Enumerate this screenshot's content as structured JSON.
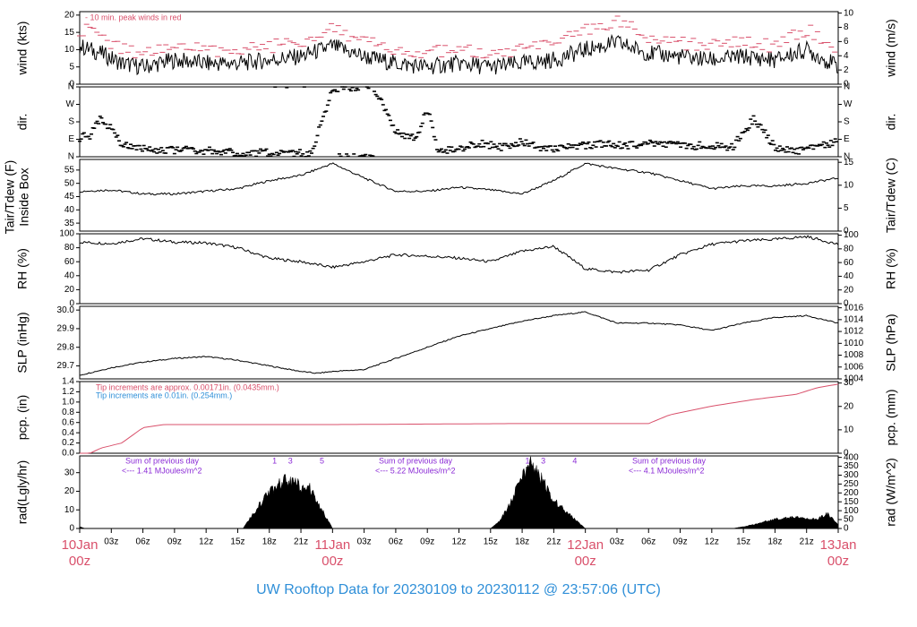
{
  "title": "UW Rooftop Data for 20230109  to  20230112 @ 23:57:06  (UTC)",
  "colors": {
    "title": "#2f8fd8",
    "day": "#d9506b",
    "peak": "#d9506b",
    "pcp": "#d9506b",
    "tip_blue": "#2f8fd8",
    "purple": "#8b2bd6",
    "ink": "#000000"
  },
  "x_axis": {
    "hour_labels": [
      "03z",
      "06z",
      "09z",
      "12z",
      "15z",
      "18z",
      "21z",
      "03z",
      "06z",
      "09z",
      "12z",
      "15z",
      "18z",
      "21z",
      "03z",
      "06z",
      "09z",
      "12z",
      "15z",
      "18z",
      "21z"
    ],
    "day_labels": [
      {
        "date": "10Jan",
        "hour": "00z"
      },
      {
        "date": "11Jan",
        "hour": "00z"
      },
      {
        "date": "12Jan",
        "hour": "00z"
      },
      {
        "date": "13Jan",
        "hour": "00z"
      }
    ]
  },
  "chart_data": [
    {
      "id": "wind",
      "type": "line",
      "ylabel_left": "wind (kts)",
      "ylabel_right": "wind (m/s)",
      "ylim": [
        0,
        21
      ],
      "yticks_left": [
        "0",
        "5",
        "10",
        "15",
        "20"
      ],
      "yticks_right": [
        "0",
        "2",
        "4",
        "6",
        "8",
        "10"
      ],
      "annotation": "- 10 min. peak winds in red",
      "series": [
        {
          "kind": "mean",
          "x_hours": [
            0,
            2,
            4,
            6,
            9,
            12,
            15,
            18,
            21,
            24,
            27,
            30,
            33,
            36,
            39,
            42,
            45,
            48,
            51,
            54,
            57,
            60,
            63,
            66,
            69,
            72
          ],
          "values": [
            11,
            9,
            6,
            5,
            7,
            6,
            6,
            7,
            8,
            11,
            8,
            6,
            5,
            6,
            5,
            6,
            7,
            10,
            12,
            9,
            8,
            7,
            8,
            7,
            10,
            5
          ]
        },
        {
          "kind": "peak",
          "x_hours": [
            0,
            2,
            4,
            6,
            9,
            12,
            15,
            18,
            21,
            24,
            27,
            30,
            33,
            36,
            39,
            42,
            45,
            48,
            51,
            54,
            57,
            60,
            63,
            66,
            69,
            72
          ],
          "values": [
            16,
            14,
            10,
            9,
            11,
            10,
            10,
            11,
            12,
            17,
            12,
            10,
            9,
            10,
            8,
            10,
            11,
            16,
            18,
            14,
            12,
            11,
            12,
            11,
            16,
            9
          ]
        }
      ]
    },
    {
      "id": "dir",
      "type": "scatter",
      "ylabel_left": "dir.",
      "ylabel_right": "dir.",
      "ylim": [
        0,
        360
      ],
      "yticks_left": [
        "N",
        "E",
        "S",
        "W",
        "N"
      ],
      "yticks_right": [
        "N",
        "E",
        "S",
        "W",
        "N"
      ],
      "x_hours": [
        0,
        1,
        2,
        3,
        4,
        6,
        8,
        10,
        12,
        14,
        16,
        18,
        20,
        22,
        24,
        26,
        28,
        30,
        32,
        33,
        34,
        36,
        38,
        40,
        42,
        44,
        46,
        48,
        50,
        52,
        54,
        56,
        58,
        60,
        62,
        64,
        66,
        68,
        70,
        72
      ],
      "values": [
        100,
        110,
        200,
        140,
        60,
        40,
        30,
        40,
        30,
        25,
        20,
        20,
        15,
        20,
        355,
        355,
        350,
        130,
        90,
        250,
        30,
        40,
        70,
        50,
        80,
        40,
        50,
        60,
        70,
        60,
        70,
        60,
        55,
        60,
        50,
        200,
        50,
        30,
        45,
        85
      ]
    },
    {
      "id": "temp",
      "type": "line",
      "ylabel_left": "Tair/Tdew (F)",
      "ylabel_left_sub": "Inside Box",
      "ylabel_right": "Tair/Tdew (C)",
      "ylim": [
        32,
        59
      ],
      "yticks_left": [
        "35",
        "40",
        "45",
        "50",
        "55"
      ],
      "yticks_right": [
        "0",
        "5",
        "10",
        "15"
      ],
      "x_hours": [
        0,
        3,
        6,
        9,
        12,
        15,
        18,
        21,
        24,
        27,
        30,
        33,
        36,
        39,
        42,
        45,
        48,
        51,
        54,
        57,
        60,
        63,
        66,
        69,
        72
      ],
      "values": [
        47,
        47.5,
        46,
        46,
        47,
        48,
        51,
        53,
        57.5,
        52,
        47,
        47,
        48.5,
        47.5,
        46,
        51,
        57.5,
        55.5,
        54,
        51,
        48,
        49,
        49,
        50,
        52
      ]
    },
    {
      "id": "rh",
      "type": "line",
      "ylabel_left": "RH (%)",
      "ylabel_right": "RH (%)",
      "ylim": [
        0,
        100
      ],
      "yticks_left": [
        "0",
        "20",
        "40",
        "60",
        "80",
        "100"
      ],
      "yticks_right": [
        "0",
        "20",
        "40",
        "60",
        "80",
        "100"
      ],
      "x_hours": [
        0,
        3,
        6,
        9,
        12,
        15,
        18,
        21,
        24,
        27,
        30,
        33,
        36,
        39,
        42,
        45,
        48,
        51,
        54,
        57,
        60,
        63,
        66,
        69,
        72
      ],
      "values": [
        88,
        86,
        93,
        88,
        87,
        80,
        65,
        60,
        52,
        60,
        70,
        68,
        65,
        60,
        75,
        82,
        50,
        45,
        48,
        70,
        85,
        90,
        92,
        96,
        85
      ]
    },
    {
      "id": "slp",
      "type": "line",
      "ylabel_left": "SLP (inHg)",
      "ylabel_right": "SLP (hPa)",
      "ylim": [
        29.63,
        30.02
      ],
      "yticks_left": [
        "29.7",
        "29.8",
        "29.9",
        "30.0"
      ],
      "yticks_right": [
        "1004",
        "1006",
        "1008",
        "1010",
        "1012",
        "1014",
        "1016"
      ],
      "x_hours": [
        0,
        3,
        6,
        9,
        12,
        15,
        18,
        21,
        22.5,
        24,
        27,
        30,
        33,
        36,
        39,
        42,
        45,
        48,
        51,
        54,
        57,
        60,
        63,
        66,
        69,
        72
      ],
      "values": [
        29.65,
        29.69,
        29.72,
        29.74,
        29.75,
        29.73,
        29.7,
        29.67,
        29.66,
        29.67,
        29.68,
        29.74,
        29.8,
        29.86,
        29.9,
        29.94,
        29.97,
        29.99,
        29.93,
        29.93,
        29.92,
        29.89,
        29.93,
        29.96,
        29.97,
        29.93
      ]
    },
    {
      "id": "pcp",
      "type": "line",
      "ylabel_left": "pcp. (in)",
      "ylabel_right": "pcp. (mm)",
      "ylim": [
        0,
        1.4
      ],
      "yticks_left": [
        "0.0",
        "0.2",
        "0.4",
        "0.6",
        "0.8",
        "1.0",
        "1.2",
        "1.4"
      ],
      "yticks_right": [
        "0",
        "10",
        "20",
        "30"
      ],
      "notes": [
        "Tip increments are approx. 0.00171in. (0.0435mm.)",
        "Tip increments are 0.01in. (0.254mm.)"
      ],
      "x_hours": [
        0,
        1,
        2,
        4,
        6,
        8,
        10,
        12,
        24,
        42,
        54,
        56,
        60,
        64,
        68,
        70,
        72
      ],
      "values": [
        0,
        0,
        0.1,
        0.2,
        0.5,
        0.56,
        0.56,
        0.56,
        0.56,
        0.58,
        0.58,
        0.75,
        0.92,
        1.05,
        1.15,
        1.28,
        1.35
      ]
    },
    {
      "id": "rad",
      "type": "area",
      "ylabel_left": "rad(Lgly/hr)",
      "ylabel_right": "rad (W/m^2)",
      "ylim": [
        0,
        39
      ],
      "yticks_left": [
        "0",
        "10",
        "20",
        "30"
      ],
      "yticks_right": [
        "0",
        "50",
        "100",
        "150",
        "200",
        "250",
        "300",
        "350",
        "400"
      ],
      "daily_notes": [
        {
          "label": "Sum of previous day",
          "value": "<--- 1.41 MJoules/m^2"
        },
        {
          "label": "Sum of previous day",
          "value": "<--- 5.22 MJoules/m^2"
        },
        {
          "label": "Sum of previous day",
          "value": "<--- 4.1 MJoules/m^2"
        }
      ],
      "markers": [
        "1",
        "3",
        "5",
        "1",
        "3",
        "4"
      ],
      "x_hours": [
        0,
        0.5,
        15.5,
        16.5,
        18,
        19.5,
        20.5,
        21,
        21.5,
        22,
        23,
        24,
        39,
        40,
        41,
        42,
        43,
        44,
        45,
        46,
        47,
        48,
        62,
        64,
        66,
        68,
        70,
        71,
        72
      ],
      "values": [
        1,
        0,
        0,
        8,
        20,
        26,
        25,
        22,
        24,
        20,
        10,
        0,
        0,
        5,
        15,
        30,
        35,
        25,
        15,
        10,
        5,
        0,
        0,
        2,
        5,
        6,
        5,
        8,
        2
      ]
    }
  ]
}
